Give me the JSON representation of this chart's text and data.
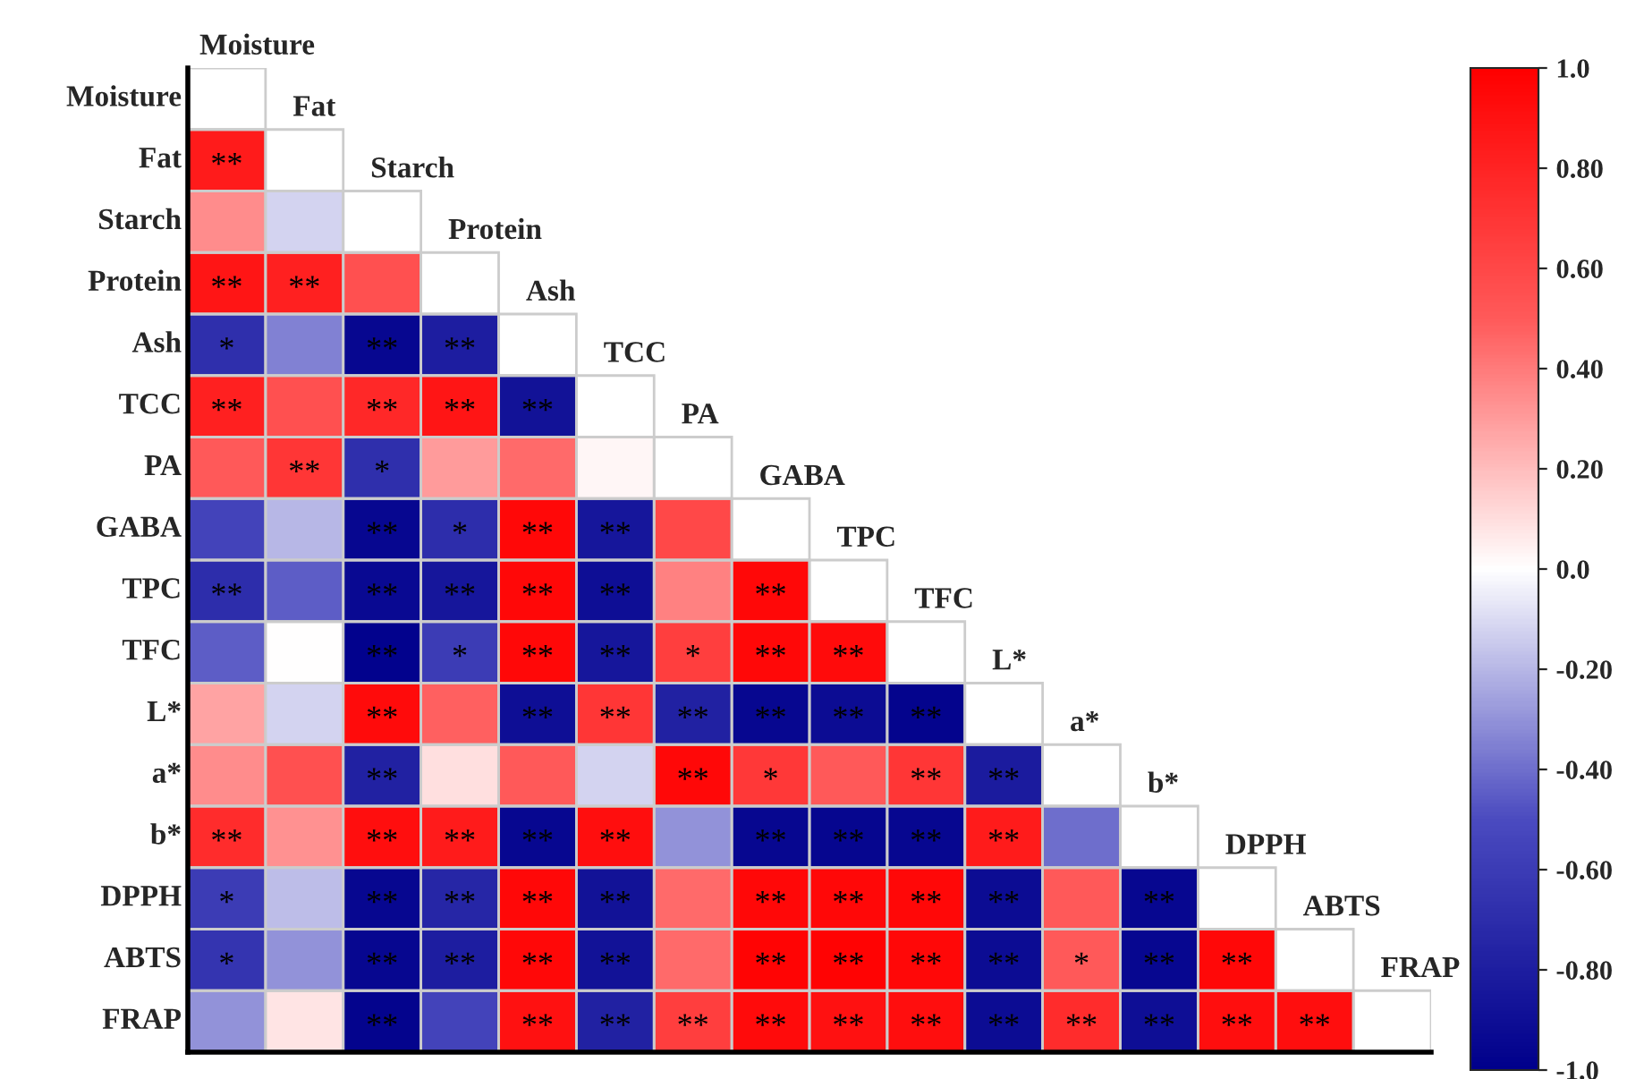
{
  "chart_data": {
    "type": "heatmap",
    "categories": [
      "Moisture",
      "Fat",
      "Starch",
      "Protein",
      "Ash",
      "TCC",
      "PA",
      "GABA",
      "TPC",
      "TFC",
      "L*",
      "a*",
      "b*",
      "DPPH",
      "ABTS",
      "FRAP"
    ],
    "y_categories": [
      "Moisture",
      "Fat",
      "Starch",
      "Protein",
      "Ash",
      "TCC",
      "PA",
      "GABA",
      "TPC",
      "TFC",
      "L*",
      "a*",
      "b*",
      "DPPH",
      "ABTS",
      "FRAP"
    ],
    "cells": [
      [
        null,
        null,
        null,
        null,
        null,
        null,
        null,
        null,
        null,
        null,
        null,
        null,
        null,
        null,
        null,
        null
      ],
      [
        0.85,
        null,
        null,
        null,
        null,
        null,
        null,
        null,
        null,
        null,
        null,
        null,
        null,
        null,
        null,
        null
      ],
      [
        0.35,
        -0.12,
        null,
        null,
        null,
        null,
        null,
        null,
        null,
        null,
        null,
        null,
        null,
        null,
        null,
        null
      ],
      [
        0.88,
        0.82,
        0.55,
        null,
        null,
        null,
        null,
        null,
        null,
        null,
        null,
        null,
        null,
        null,
        null,
        null
      ],
      [
        -0.68,
        -0.35,
        -0.95,
        -0.8,
        null,
        null,
        null,
        null,
        null,
        null,
        null,
        null,
        null,
        null,
        null,
        null
      ],
      [
        0.82,
        0.55,
        0.78,
        0.88,
        -0.88,
        null,
        null,
        null,
        null,
        null,
        null,
        null,
        null,
        null,
        null,
        null
      ],
      [
        0.5,
        0.7,
        -0.68,
        0.3,
        0.45,
        0.03,
        null,
        null,
        null,
        null,
        null,
        null,
        null,
        null,
        null,
        null
      ],
      [
        -0.55,
        -0.2,
        -0.95,
        -0.7,
        0.95,
        -0.85,
        0.6,
        null,
        null,
        null,
        null,
        null,
        null,
        null,
        null,
        null
      ],
      [
        -0.7,
        -0.45,
        -0.93,
        -0.85,
        0.95,
        -0.9,
        0.38,
        0.95,
        null,
        null,
        null,
        null,
        null,
        null,
        null,
        null
      ],
      [
        -0.45,
        0.0,
        -0.98,
        -0.6,
        0.95,
        -0.85,
        0.65,
        0.95,
        0.93,
        null,
        null,
        null,
        null,
        null,
        null,
        null
      ],
      [
        0.28,
        -0.12,
        0.93,
        0.48,
        -0.9,
        0.7,
        -0.78,
        -0.95,
        -0.92,
        -0.97,
        null,
        null,
        null,
        null,
        null,
        null
      ],
      [
        0.35,
        0.55,
        -0.78,
        0.1,
        0.5,
        -0.12,
        0.95,
        0.68,
        0.5,
        0.7,
        -0.82,
        null,
        null,
        null,
        null,
        null
      ],
      [
        0.75,
        0.33,
        0.92,
        0.85,
        -0.95,
        0.92,
        -0.3,
        -0.95,
        -0.96,
        -0.95,
        0.85,
        -0.4,
        null,
        null,
        null,
        null
      ],
      [
        -0.6,
        -0.18,
        -0.95,
        -0.75,
        0.95,
        -0.88,
        0.45,
        0.95,
        0.95,
        0.95,
        -0.92,
        0.5,
        -0.95,
        null,
        null,
        null
      ],
      [
        -0.65,
        -0.3,
        -0.95,
        -0.8,
        0.95,
        -0.88,
        0.45,
        0.97,
        0.98,
        0.95,
        -0.92,
        0.5,
        -0.95,
        0.95,
        null,
        null
      ],
      [
        -0.3,
        0.08,
        -0.97,
        -0.55,
        0.9,
        -0.78,
        0.65,
        0.93,
        0.9,
        0.92,
        -0.92,
        0.75,
        -0.9,
        0.92,
        0.92,
        null
      ]
    ],
    "cell_labels": [
      [
        null,
        null,
        null,
        null,
        null,
        null,
        null,
        null,
        null,
        null,
        null,
        null,
        null,
        null,
        null,
        null
      ],
      [
        "**",
        null,
        null,
        null,
        null,
        null,
        null,
        null,
        null,
        null,
        null,
        null,
        null,
        null,
        null,
        null
      ],
      [
        null,
        null,
        null,
        null,
        null,
        null,
        null,
        null,
        null,
        null,
        null,
        null,
        null,
        null,
        null,
        null
      ],
      [
        "**",
        "**",
        null,
        null,
        null,
        null,
        null,
        null,
        null,
        null,
        null,
        null,
        null,
        null,
        null,
        null
      ],
      [
        "*",
        null,
        "**",
        "**",
        null,
        null,
        null,
        null,
        null,
        null,
        null,
        null,
        null,
        null,
        null,
        null
      ],
      [
        "**",
        null,
        "**",
        "**",
        "**",
        null,
        null,
        null,
        null,
        null,
        null,
        null,
        null,
        null,
        null,
        null
      ],
      [
        null,
        "**",
        "*",
        null,
        null,
        null,
        null,
        null,
        null,
        null,
        null,
        null,
        null,
        null,
        null,
        null
      ],
      [
        null,
        null,
        "**",
        "*",
        "**",
        "**",
        null,
        null,
        null,
        null,
        null,
        null,
        null,
        null,
        null,
        null
      ],
      [
        "**",
        null,
        "**",
        "**",
        "**",
        "**",
        null,
        "**",
        null,
        null,
        null,
        null,
        null,
        null,
        null,
        null
      ],
      [
        null,
        null,
        "**",
        "*",
        "**",
        "**",
        "*",
        "**",
        "**",
        null,
        null,
        null,
        null,
        null,
        null,
        null
      ],
      [
        null,
        null,
        "**",
        null,
        "**",
        "**",
        "**",
        "**",
        "**",
        "**",
        null,
        null,
        null,
        null,
        null,
        null
      ],
      [
        null,
        null,
        "**",
        null,
        null,
        null,
        "**",
        "*",
        null,
        "**",
        "**",
        null,
        null,
        null,
        null,
        null
      ],
      [
        "**",
        null,
        "**",
        "**",
        "**",
        "**",
        null,
        "**",
        "**",
        "**",
        "**",
        null,
        null,
        null,
        null,
        null
      ],
      [
        "*",
        null,
        "**",
        "**",
        "**",
        "**",
        null,
        "**",
        "**",
        "**",
        "**",
        null,
        "**",
        null,
        null,
        null
      ],
      [
        "*",
        null,
        "**",
        "**",
        "**",
        "**",
        null,
        "**",
        "**",
        "**",
        "**",
        "*",
        "**",
        "**",
        null,
        null
      ],
      [
        null,
        null,
        "**",
        null,
        "**",
        "**",
        "**",
        "**",
        "**",
        "**",
        "**",
        "**",
        "**",
        "**",
        "**",
        null
      ]
    ],
    "clim": [
      -1,
      1
    ],
    "cticks": [
      {
        "value": 1.0,
        "label": "1.0"
      },
      {
        "value": 0.8,
        "label": "0.80"
      },
      {
        "value": 0.6,
        "label": "0.60"
      },
      {
        "value": 0.4,
        "label": "0.40"
      },
      {
        "value": 0.2,
        "label": "0.20"
      },
      {
        "value": 0.0,
        "label": "0.0"
      },
      {
        "value": -0.2,
        "label": "-0.20"
      },
      {
        "value": -0.4,
        "label": "-0.40"
      },
      {
        "value": -0.6,
        "label": "-0.60"
      },
      {
        "value": -0.8,
        "label": "-0.80"
      },
      {
        "value": -1.0,
        "label": "-1.0"
      }
    ]
  }
}
